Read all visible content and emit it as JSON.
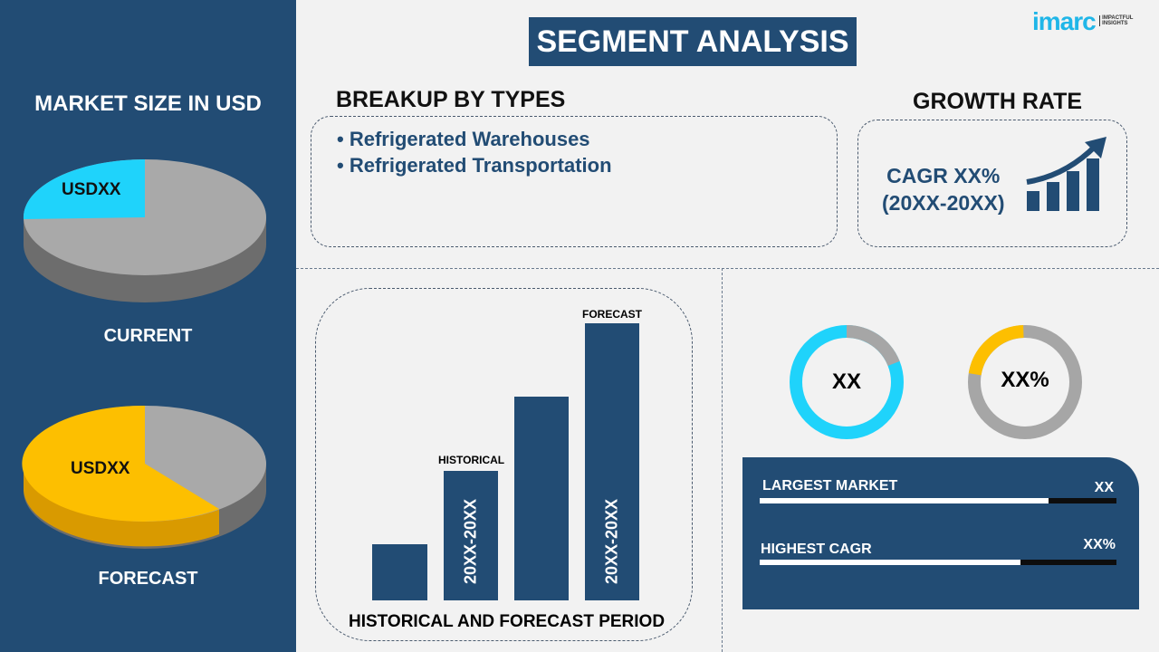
{
  "title": "SEGMENT ANALYSIS",
  "logo": {
    "text": "imarc",
    "tagline": "IMPACTFUL INSIGHTS",
    "color": "#1fb6e8"
  },
  "left_panel": {
    "heading": "MARKET SIZE IN USD",
    "current": {
      "label": "CURRENT",
      "value": "USDXX",
      "highlight_share": 0.25,
      "highlight_color": "#1fd3fb"
    },
    "forecast": {
      "label": "FORECAST",
      "value": "USDXX",
      "highlight_share": 0.6,
      "highlight_color": "#fdbf00"
    }
  },
  "breakup": {
    "heading": "BREAKUP BY TYPES",
    "items": [
      "Refrigerated Warehouses",
      "Refrigerated Transportation"
    ]
  },
  "growth": {
    "heading": "GROWTH RATE",
    "cagr": "CAGR XX%",
    "period": "(20XX-20XX)"
  },
  "bar_chart": {
    "title": "HISTORICAL AND FORECAST PERIOD",
    "historical_label": "HISTORICAL",
    "forecast_label": "FORECAST",
    "bar_text_historical": "20XX-20XX",
    "bar_text_forecast": "20XX-20XX",
    "relative_heights": [
      0.2,
      0.47,
      0.74,
      1.0
    ]
  },
  "donuts": [
    {
      "text": "XX",
      "share_gray": 0.19,
      "color": "#1fd3fb"
    },
    {
      "text": "XX%",
      "share_yellow": 0.22,
      "color": "#fdbf00"
    }
  ],
  "stats": [
    {
      "label": "LARGEST MARKET",
      "value": "XX",
      "fill": 0.81
    },
    {
      "label": "HIGHEST CAGR",
      "value": "XX%",
      "fill": 0.73
    }
  ],
  "colors": {
    "navy": "#224c74",
    "cyan": "#1fd3fb",
    "yellow": "#fdbf00",
    "gray": "#a6a6a6"
  }
}
